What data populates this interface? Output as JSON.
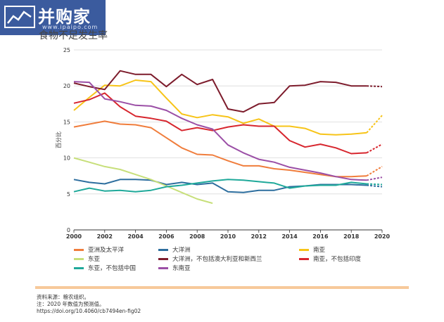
{
  "watermark": {
    "brand": "并购家",
    "domain": "www.ipaipo.com"
  },
  "title": "食物不足发生率",
  "chart_data": {
    "type": "line",
    "ylabel": "百分比",
    "xlabel": "",
    "xlim": [
      2000,
      2020
    ],
    "ylim": [
      0,
      25
    ],
    "x_ticks": [
      2000,
      2002,
      2004,
      2006,
      2008,
      2010,
      2012,
      2014,
      2016,
      2018,
      2020
    ],
    "y_ticks": [
      0,
      5,
      10,
      15,
      20,
      25
    ],
    "grid": "horizontal",
    "legend_position": "bottom",
    "projection_from": 2019,
    "series": [
      {
        "name": "亚洲及太平洋",
        "color": "#f07d3c",
        "x": [
          2000,
          2001,
          2002,
          2003,
          2004,
          2005,
          2006,
          2007,
          2008,
          2009,
          2010,
          2011,
          2012,
          2013,
          2014,
          2015,
          2016,
          2017,
          2018,
          2019
        ],
        "y": [
          14.3,
          14.7,
          15.1,
          14.7,
          14.6,
          14.2,
          12.8,
          11.4,
          10.5,
          10.4,
          9.6,
          8.9,
          8.9,
          8.5,
          8.3,
          8.0,
          7.7,
          7.4,
          7.4,
          7.5
        ],
        "projection": [
          [
            2019,
            7.5
          ],
          [
            2020,
            8.8
          ]
        ]
      },
      {
        "name": "大洋洲",
        "color": "#2d6e9e",
        "x": [
          2000,
          2001,
          2002,
          2003,
          2004,
          2005,
          2006,
          2007,
          2008,
          2009,
          2010,
          2011,
          2012,
          2013,
          2014,
          2015,
          2016,
          2017,
          2018,
          2019
        ],
        "y": [
          7.0,
          6.6,
          6.4,
          7.0,
          7.0,
          6.9,
          6.3,
          6.6,
          6.3,
          6.5,
          5.3,
          5.2,
          5.5,
          5.5,
          6.0,
          6.1,
          6.3,
          6.3,
          6.3,
          6.2
        ],
        "projection": [
          [
            2019,
            6.2
          ],
          [
            2020,
            6.0
          ]
        ]
      },
      {
        "name": "南亚",
        "color": "#f7c418",
        "x": [
          2000,
          2001,
          2002,
          2003,
          2004,
          2005,
          2006,
          2007,
          2008,
          2009,
          2010,
          2011,
          2012,
          2013,
          2014,
          2015,
          2016,
          2017,
          2018,
          2019
        ],
        "y": [
          16.6,
          18.4,
          20.1,
          20.0,
          20.8,
          20.6,
          18.3,
          16.1,
          15.6,
          16.0,
          15.7,
          14.8,
          15.4,
          14.4,
          14.4,
          14.1,
          13.3,
          13.2,
          13.3,
          13.5
        ],
        "projection": [
          [
            2019,
            13.5
          ],
          [
            2020,
            15.9
          ]
        ]
      },
      {
        "name": "东亚",
        "color": "#c7df7a",
        "x": [
          2000,
          2001,
          2002,
          2003,
          2004,
          2005,
          2006,
          2007,
          2008,
          2009
        ],
        "y": [
          10.0,
          9.4,
          8.8,
          8.4,
          7.7,
          7.0,
          6.1,
          5.2,
          4.3,
          3.7
        ],
        "projection": []
      },
      {
        "name": "大洋洲，不包括澳大利亚和新西兰",
        "color": "#7d1c2c",
        "x": [
          2000,
          2001,
          2002,
          2003,
          2004,
          2005,
          2006,
          2007,
          2008,
          2009,
          2010,
          2011,
          2012,
          2013,
          2014,
          2015,
          2016,
          2017,
          2018,
          2019
        ],
        "y": [
          20.4,
          19.9,
          19.5,
          22.1,
          21.6,
          21.6,
          19.9,
          21.6,
          20.2,
          20.9,
          16.8,
          16.4,
          17.5,
          17.7,
          20.0,
          20.1,
          20.6,
          20.5,
          20.0,
          20.0
        ],
        "projection": [
          [
            2019,
            20.0
          ],
          [
            2020,
            19.9
          ]
        ]
      },
      {
        "name": "南亚，不包括印度",
        "color": "#d7262e",
        "x": [
          2000,
          2001,
          2002,
          2003,
          2004,
          2005,
          2006,
          2007,
          2008,
          2009,
          2010,
          2011,
          2012,
          2013,
          2014,
          2015,
          2016,
          2017,
          2018,
          2019
        ],
        "y": [
          17.6,
          18.1,
          19.0,
          17.1,
          15.8,
          15.5,
          15.1,
          13.8,
          14.2,
          13.8,
          14.3,
          14.6,
          14.4,
          14.4,
          12.4,
          11.5,
          11.9,
          11.4,
          10.6,
          10.7
        ],
        "projection": [
          [
            2019,
            10.7
          ],
          [
            2020,
            11.9
          ]
        ]
      },
      {
        "name": "东亚，不包括中国",
        "color": "#1fa99a",
        "x": [
          2000,
          2001,
          2002,
          2003,
          2004,
          2005,
          2006,
          2007,
          2008,
          2009,
          2010,
          2011,
          2012,
          2013,
          2014,
          2015,
          2016,
          2017,
          2018,
          2019
        ],
        "y": [
          5.3,
          5.8,
          5.4,
          5.5,
          5.3,
          5.5,
          6.0,
          6.2,
          6.5,
          6.8,
          7.0,
          6.9,
          6.7,
          6.5,
          5.8,
          6.1,
          6.2,
          6.2,
          6.6,
          6.4
        ],
        "projection": [
          [
            2019,
            6.4
          ],
          [
            2020,
            6.3
          ]
        ]
      },
      {
        "name": "东南亚",
        "color": "#9b4fa6",
        "x": [
          2000,
          2001,
          2002,
          2003,
          2004,
          2005,
          2006,
          2007,
          2008,
          2009,
          2010,
          2011,
          2012,
          2013,
          2014,
          2015,
          2016,
          2017,
          2018,
          2019
        ],
        "y": [
          20.6,
          20.5,
          18.2,
          17.8,
          17.3,
          17.2,
          16.6,
          15.5,
          14.6,
          14.0,
          11.8,
          10.7,
          9.8,
          9.4,
          8.7,
          8.3,
          7.9,
          7.4,
          7.0,
          6.9
        ],
        "projection": [
          [
            2019,
            6.9
          ],
          [
            2020,
            7.3
          ]
        ]
      }
    ]
  },
  "notes": {
    "source": "资料来源：粮农组织。",
    "note": "注：2020 年数值为预测值。",
    "doi": "https://doi.org/10.4060/cb7494en-fig02"
  }
}
